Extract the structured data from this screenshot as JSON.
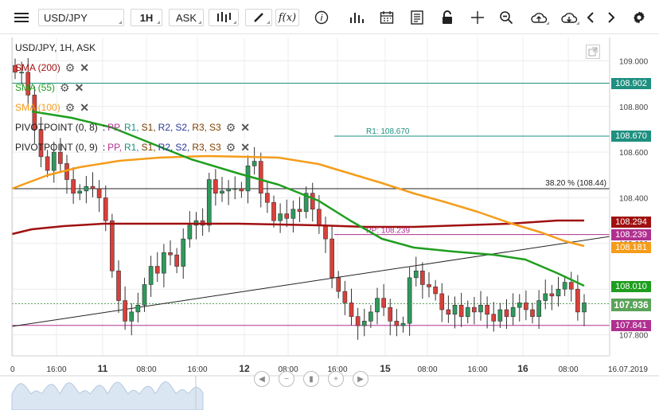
{
  "toolbar": {
    "symbol": "USD/JPY",
    "interval": "1H",
    "price_type": "ASK",
    "tools": [
      "chart-type-icon",
      "draw-icon",
      "function-icon",
      "info-icon",
      "indicators-icon",
      "calendar-icon",
      "news-icon",
      "lock-icon",
      "crosshair-icon",
      "zoom-icon",
      "upload-icon",
      "download-icon",
      "prev-icon",
      "next-icon",
      "settings-icon"
    ]
  },
  "chart": {
    "title": "USD/JPY, 1H, ASK",
    "legend": [
      {
        "text": "SMA (200)",
        "color": "#a01010"
      },
      {
        "text": "SMA (55)",
        "color": "#1e9e1e"
      },
      {
        "text": "SMA (100)",
        "color": "#f59c1a"
      }
    ],
    "pivot": [
      {
        "label": "PIVOTPOINT (0, 8)",
        "items": [
          "PP,",
          "R1,",
          "S1,",
          "R2,",
          "S2,",
          "R3,",
          "S3"
        ]
      },
      {
        "label": "PIVOTPOINT (0, 9)",
        "items": [
          "PP,",
          "R1,",
          "S1,",
          "R2,",
          "S2,",
          "R3,",
          "S3"
        ]
      }
    ],
    "pivot_item_colors": [
      "#b03090",
      "#1e9080",
      "#704000",
      "#2a3a9a",
      "#2a3a9a",
      "#804000",
      "#804000"
    ],
    "y_ticks": [
      "109.000",
      "108.800",
      "108.600",
      "108.400",
      "108.200",
      "107.800"
    ],
    "x_ticks": [
      {
        "t": "0",
        "bold": false
      },
      {
        "t": "16:00",
        "bold": false
      },
      {
        "t": "11",
        "bold": true
      },
      {
        "t": "08:00",
        "bold": false
      },
      {
        "t": "16:00",
        "bold": false
      },
      {
        "t": "12",
        "bold": true
      },
      {
        "t": "08:00",
        "bold": false
      },
      {
        "t": "16:00",
        "bold": false
      },
      {
        "t": "15",
        "bold": true
      },
      {
        "t": "08:00",
        "bold": false
      },
      {
        "t": "16:00",
        "bold": false
      },
      {
        "t": "16",
        "bold": true
      },
      {
        "t": "08:00",
        "bold": false
      },
      {
        "t": "16.07.2019",
        "bold": false
      }
    ],
    "price_labels": [
      {
        "text": "108.902",
        "color": "#1e9080"
      },
      {
        "text": "108.670",
        "color": "#1e9080"
      },
      {
        "text": "108.294",
        "color": "#a01010"
      },
      {
        "text": "108.239",
        "color": "#b03090"
      },
      {
        "text": "108.181",
        "color": "#f59c1a"
      },
      {
        "text": "108.010",
        "color": "#1e9e1e"
      },
      {
        "text": "107.936",
        "color": "#5aa35a"
      },
      {
        "text": "107.841",
        "color": "#b03090"
      }
    ],
    "annotations": {
      "r1": "R1: 108.670",
      "fib": "38.20 % (108.44)",
      "pp": "PP: 108.239"
    },
    "colors": {
      "up": "#2e9a5c",
      "down": "#d9403a",
      "sma200": "#a01010",
      "sma55": "#1e9e1e",
      "sma100": "#f59c1a"
    }
  }
}
